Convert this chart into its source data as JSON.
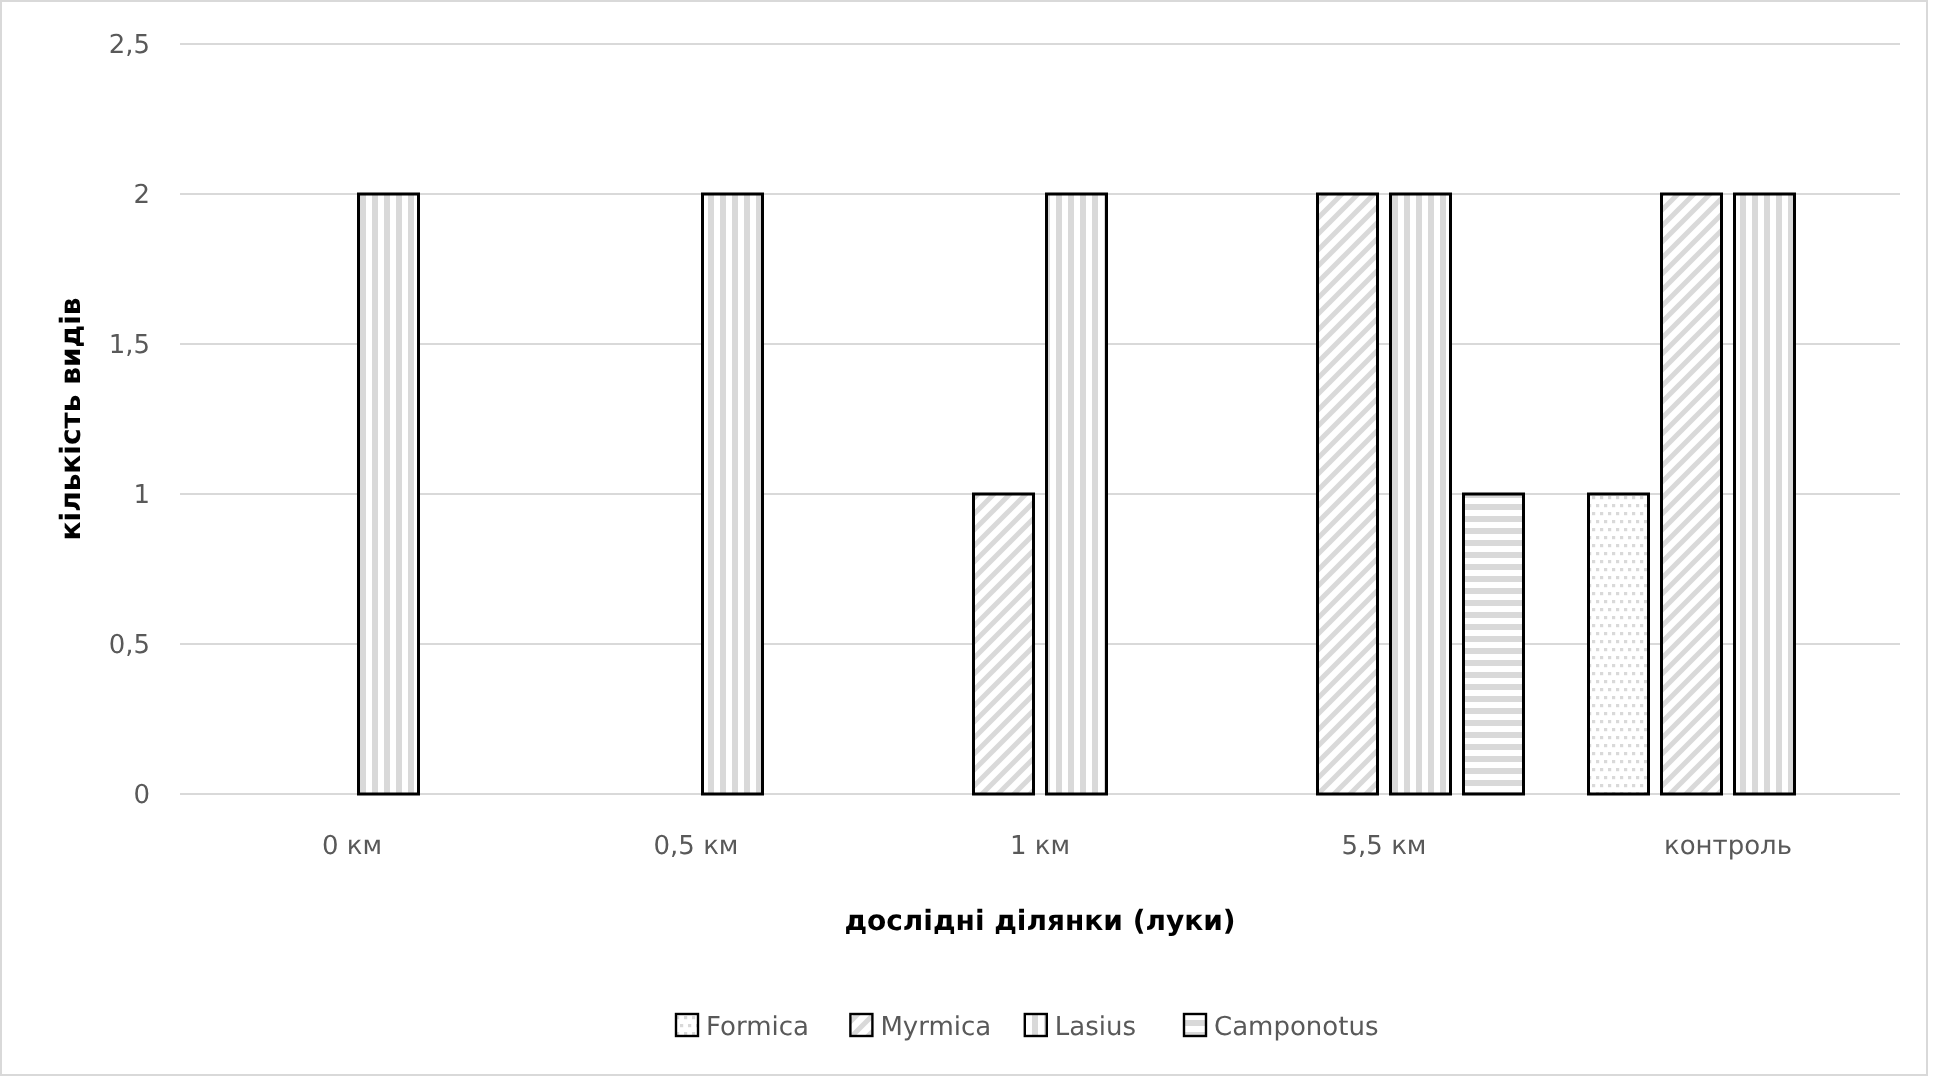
{
  "chart_data": {
    "type": "bar",
    "xlabel": "дослідні ділянки (луки)",
    "ylabel": "кількість видів",
    "categories": [
      "0 км",
      "0,5 км",
      "1 км",
      "5,5 км",
      "контроль"
    ],
    "series": [
      {
        "name": "Formica",
        "color": "#000000",
        "values": [
          null,
          null,
          null,
          null,
          1
        ]
      },
      {
        "name": "Myrmica",
        "color": "#000000",
        "values": [
          null,
          null,
          1,
          2,
          2
        ]
      },
      {
        "name": "Lasius",
        "color": "#000000",
        "values": [
          2,
          2,
          2,
          2,
          2
        ]
      },
      {
        "name": "Camponotus",
        "color": "#000000",
        "values": [
          null,
          null,
          null,
          1,
          null
        ]
      }
    ],
    "ylim": [
      0,
      2.5
    ],
    "yticks": [
      {
        "value": 0,
        "label": "0"
      },
      {
        "value": 0.5,
        "label": "0,5"
      },
      {
        "value": 1,
        "label": "1"
      },
      {
        "value": 1.5,
        "label": "1,5"
      },
      {
        "value": 2,
        "label": "2"
      },
      {
        "value": 2.5,
        "label": "2,5"
      }
    ],
    "grid": "y",
    "legend": "bottom"
  }
}
